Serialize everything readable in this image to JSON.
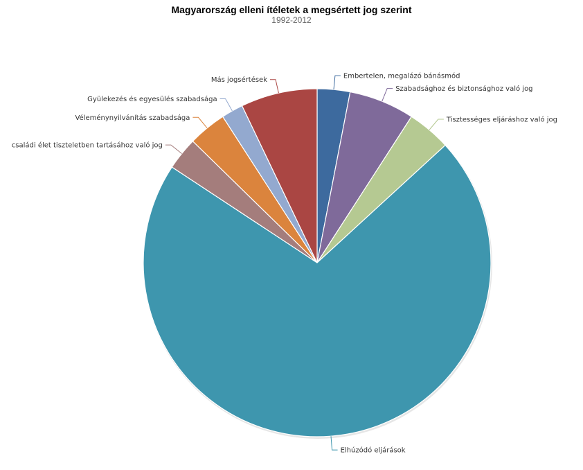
{
  "chart_data": {
    "type": "pie",
    "title": "Magyarország elleni ítéletek a megsértett jog szerint",
    "subtitle": "1992-2012",
    "slices": [
      {
        "label": "Embertelen, megalázó bánásmód",
        "value": 3.0,
        "color": "#3d6a9e"
      },
      {
        "label": "Szabadsághoz és biztonsághoz való jog",
        "value": 6.0,
        "color": "#7f6a9a"
      },
      {
        "label": "Tisztességes eljáráshoz való jog",
        "value": 4.0,
        "color": "#b5c992"
      },
      {
        "label": "Elhúzódó eljárások",
        "value": 70.0,
        "color": "#3e96ae"
      },
      {
        "label": "családi élet tiszteletben tartásához való jog",
        "value": 3.0,
        "color": "#a47d7c"
      },
      {
        "label": "Véleménynyilvánítás szabadsága",
        "value": 3.5,
        "color": "#db843d"
      },
      {
        "label": "Gyülekezés és egyesülés szabadsága",
        "value": 2.0,
        "color": "#93a9cf"
      },
      {
        "label": "Más jogsértések",
        "value": 7.0,
        "color": "#aa4643"
      }
    ]
  }
}
